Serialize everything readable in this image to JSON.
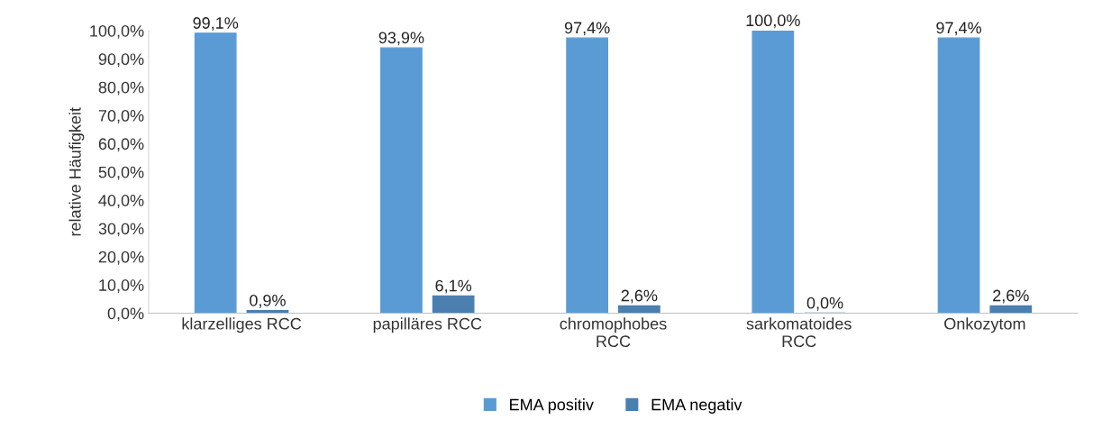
{
  "chart_data": {
    "type": "bar",
    "ylabel": "relative Häufigkeit",
    "categories": [
      "klarzelliges RCC",
      "papilläres RCC",
      "chromophobes\nRCC",
      "sarkomatoides\nRCC",
      "Onkozytom"
    ],
    "series": [
      {
        "name": "EMA positiv",
        "color": "#5b9bd5",
        "values": [
          99.1,
          93.9,
          97.4,
          100.0,
          97.4
        ],
        "value_labels": [
          "99,1%",
          "93,9%",
          "97,4%",
          "100,0%",
          "97,4%"
        ]
      },
      {
        "name": "EMA negativ",
        "color": "#4a7fb0",
        "values": [
          0.9,
          6.1,
          2.6,
          0.0,
          2.6
        ],
        "value_labels": [
          "0,9%",
          "6,1%",
          "2,6%",
          "0,0%",
          "2,6%"
        ]
      }
    ],
    "ylim": [
      0,
      100
    ],
    "yticks": [
      {
        "value": 0,
        "label": "0,0%"
      },
      {
        "value": 10,
        "label": "10,0%"
      },
      {
        "value": 20,
        "label": "20,0%"
      },
      {
        "value": 30,
        "label": "30,0%"
      },
      {
        "value": 40,
        "label": "40,0%"
      },
      {
        "value": 50,
        "label": "50,0%"
      },
      {
        "value": 60,
        "label": "60,0%"
      },
      {
        "value": 70,
        "label": "70,0%"
      },
      {
        "value": 80,
        "label": "80,0%"
      },
      {
        "value": 90,
        "label": "90,0%"
      },
      {
        "value": 100,
        "label": "100,0%"
      }
    ],
    "grid": false,
    "legend": "bottom"
  }
}
